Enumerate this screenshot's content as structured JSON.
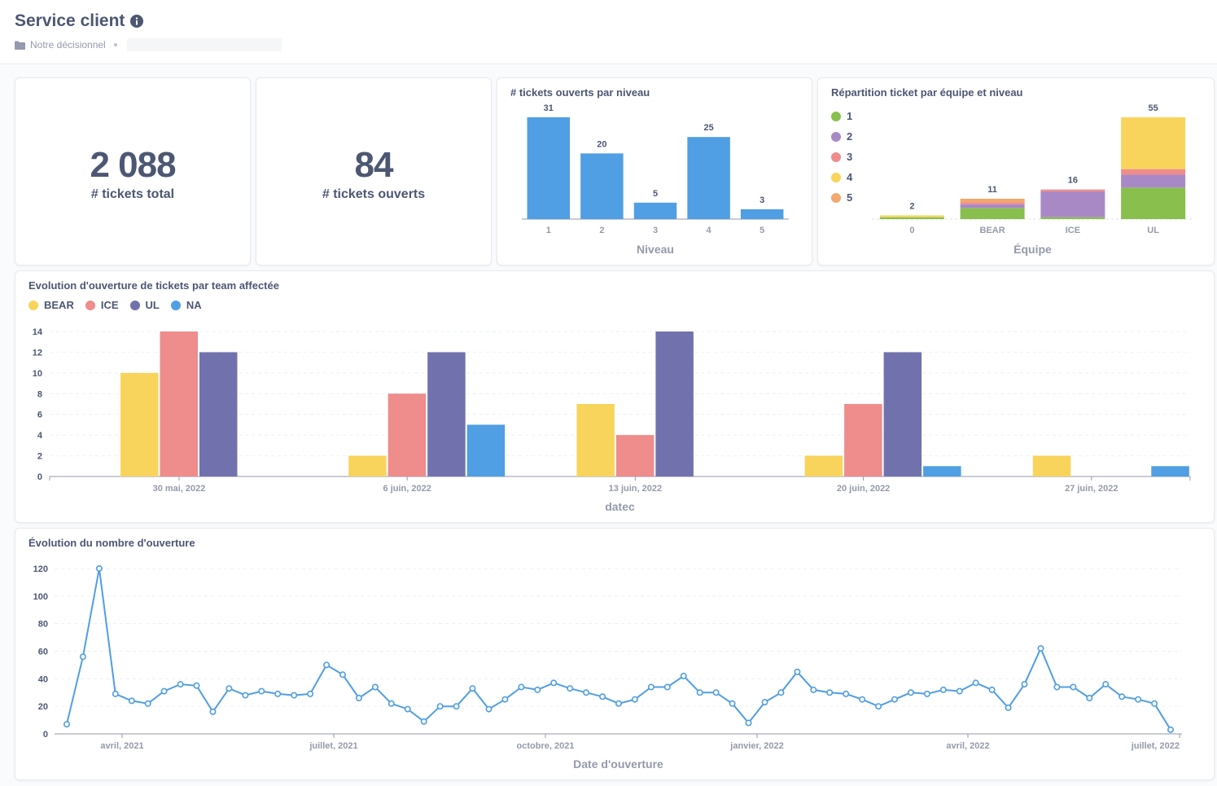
{
  "header": {
    "title": "Service client",
    "breadcrumb_folder": "Notre décisionnel"
  },
  "colors": {
    "blue": "#509ee3",
    "yellow": "#f9d45c",
    "pink": "#ef8c8c",
    "purple": "#7172ad",
    "green": "#88bf4d",
    "lilac": "#a989c5",
    "orange": "#f2a86f"
  },
  "scalar_total": {
    "value": "2 088",
    "label": "# tickets total"
  },
  "scalar_open": {
    "value": "84",
    "label": "# tickets ouverts"
  },
  "chart_data": [
    {
      "id": "level",
      "type": "bar",
      "title": "# tickets ouverts par niveau",
      "xlabel": "Niveau",
      "categories": [
        "1",
        "2",
        "3",
        "4",
        "5"
      ],
      "values": [
        31,
        20,
        5,
        25,
        3
      ],
      "ylim": [
        0,
        31
      ],
      "color": "#509ee3"
    },
    {
      "id": "team_level",
      "type": "bar",
      "stacked": true,
      "title": "Répartition ticket par équipe et niveau",
      "xlabel": "Équipe",
      "categories": [
        "0",
        "BEAR",
        "ICE",
        "UL"
      ],
      "totals": [
        2,
        11,
        16,
        55
      ],
      "series": [
        {
          "name": "1",
          "color": "#88bf4d",
          "values": [
            1,
            6,
            1,
            17
          ]
        },
        {
          "name": "2",
          "color": "#a989c5",
          "values": [
            0,
            2,
            14,
            7
          ]
        },
        {
          "name": "3",
          "color": "#ef8c8c",
          "values": [
            0,
            1,
            1,
            3
          ]
        },
        {
          "name": "4",
          "color": "#f9d45c",
          "values": [
            1,
            0,
            0,
            28
          ]
        },
        {
          "name": "5",
          "color": "#f2a86f",
          "values": [
            0,
            2,
            0,
            0
          ]
        }
      ],
      "ylim": [
        0,
        55
      ],
      "legend": "left"
    },
    {
      "id": "weekly_team",
      "type": "bar",
      "title": "Evolution d'ouverture de tickets par team affectée",
      "xlabel": "datec",
      "categories": [
        "30 mai, 2022",
        "6 juin, 2022",
        "13 juin, 2022",
        "20 juin, 2022",
        "27 juin, 2022"
      ],
      "series": [
        {
          "name": "BEAR",
          "color": "#f9d45c",
          "values": [
            10,
            2,
            7,
            2,
            2
          ]
        },
        {
          "name": "ICE",
          "color": "#ef8c8c",
          "values": [
            14,
            8,
            4,
            7,
            0
          ]
        },
        {
          "name": "UL",
          "color": "#7172ad",
          "values": [
            12,
            12,
            14,
            12,
            0
          ]
        },
        {
          "name": "NA",
          "color": "#509ee3",
          "values": [
            0,
            5,
            0,
            1,
            1
          ]
        }
      ],
      "yticks": [
        "0",
        "2",
        "4",
        "6",
        "8",
        "10",
        "12",
        "14"
      ],
      "ylim": [
        0,
        14
      ],
      "legend": "top-left"
    },
    {
      "id": "timeline",
      "type": "line",
      "title": "Évolution du nombre d'ouverture",
      "xlabel": "Date d'ouverture",
      "x_ticks": [
        "avril, 2021",
        "juillet, 2021",
        "octobre, 2021",
        "janvier, 2022",
        "avril, 2022",
        "juillet, 2022"
      ],
      "yticks": [
        "0",
        "20",
        "40",
        "60",
        "80",
        "100",
        "120"
      ],
      "ylim": [
        0,
        120
      ],
      "values": [
        7,
        56,
        120,
        29,
        24,
        22,
        31,
        36,
        35,
        16,
        33,
        28,
        31,
        29,
        28,
        29,
        50,
        43,
        26,
        34,
        22,
        18,
        9,
        20,
        20,
        33,
        18,
        25,
        34,
        32,
        37,
        33,
        30,
        27,
        22,
        25,
        34,
        34,
        42,
        30,
        30,
        22,
        8,
        23,
        30,
        45,
        32,
        30,
        29,
        25,
        20,
        25,
        30,
        29,
        32,
        31,
        37,
        32,
        19,
        36,
        62,
        34,
        34,
        26,
        36,
        27,
        25,
        22,
        3
      ],
      "color": "#509ee3"
    }
  ]
}
